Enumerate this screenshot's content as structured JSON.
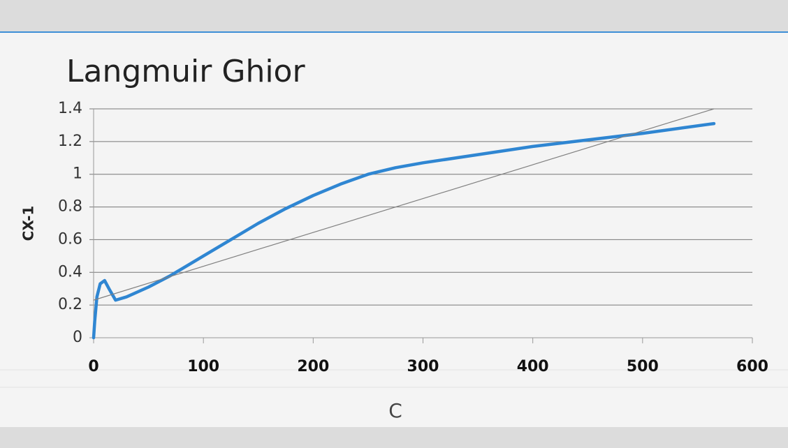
{
  "chart_data": {
    "type": "line",
    "title": "Langmuir Ghior",
    "x_label": "C",
    "y_label": "CX-1",
    "series": [
      {
        "color": "#2f86d2",
        "x": [
          0,
          1,
          3,
          6,
          10,
          14,
          20,
          30,
          50,
          70,
          100,
          125,
          150,
          175,
          200,
          225,
          250,
          275,
          300,
          350,
          400,
          450,
          500,
          565
        ],
        "values": [
          0,
          0.1,
          0.25,
          0.33,
          0.35,
          0.3,
          0.23,
          0.25,
          0.31,
          0.38,
          0.5,
          0.6,
          0.7,
          0.79,
          0.87,
          0.94,
          1.0,
          1.04,
          1.07,
          1.12,
          1.17,
          1.21,
          1.25,
          1.31
        ]
      },
      {
        "color": "#808080",
        "x": [
          0,
          565
        ],
        "values": [
          0.23,
          1.4
        ]
      }
    ],
    "xlim": [
      0,
      600
    ],
    "xticks": [
      0,
      100,
      200,
      300,
      400,
      500,
      600
    ],
    "ylim": [
      0,
      1.4
    ],
    "yticks": [
      0,
      0.2,
      0.4,
      0.6,
      0.8,
      1,
      1.2,
      1.4
    ],
    "grid": true
  }
}
